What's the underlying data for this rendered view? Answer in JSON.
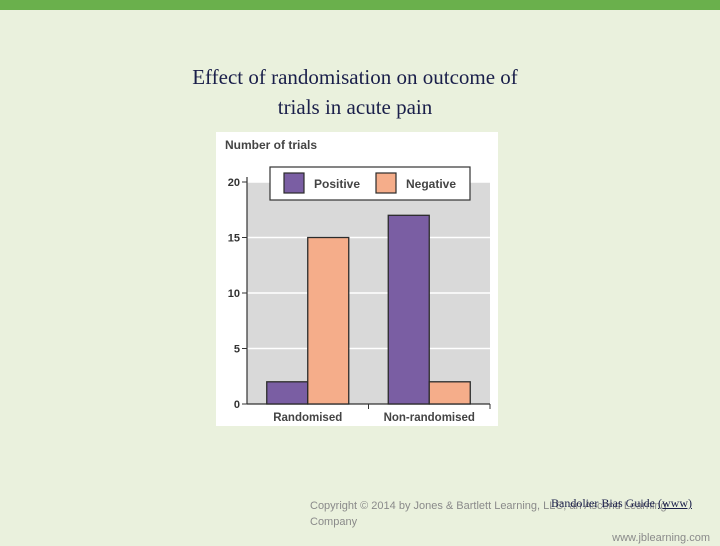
{
  "slide": {
    "title_line1": "Effect of randomisation on outcome of",
    "title_line2": "trials in acute pain",
    "copyright_line1": "Copyright © 2014 by Jones & Bartlett Learning, LLC, an Ascend Learning Company",
    "copyright_line2": "www.jblearning.com",
    "citation_text": "Bandolier Bias Guide ",
    "citation_link": "(www)"
  },
  "colors": {
    "positive": "#7a5ea3",
    "negative": "#f5ad8a",
    "plot_bg": "#d9d9d9",
    "gridline": "#ffffff",
    "accent_bar": "#6ab04c"
  },
  "chart_data": {
    "type": "bar",
    "title": "",
    "ylabel": "Number of trials",
    "xlabel": "",
    "categories": [
      "Randomised",
      "Non-randomised"
    ],
    "series": [
      {
        "name": "Positive",
        "values": [
          2,
          17
        ]
      },
      {
        "name": "Negative",
        "values": [
          15,
          2
        ]
      }
    ],
    "ylim": [
      0,
      20
    ],
    "yticks": [
      0,
      5,
      10,
      15,
      20
    ],
    "grid": true,
    "legend_position": "top"
  }
}
